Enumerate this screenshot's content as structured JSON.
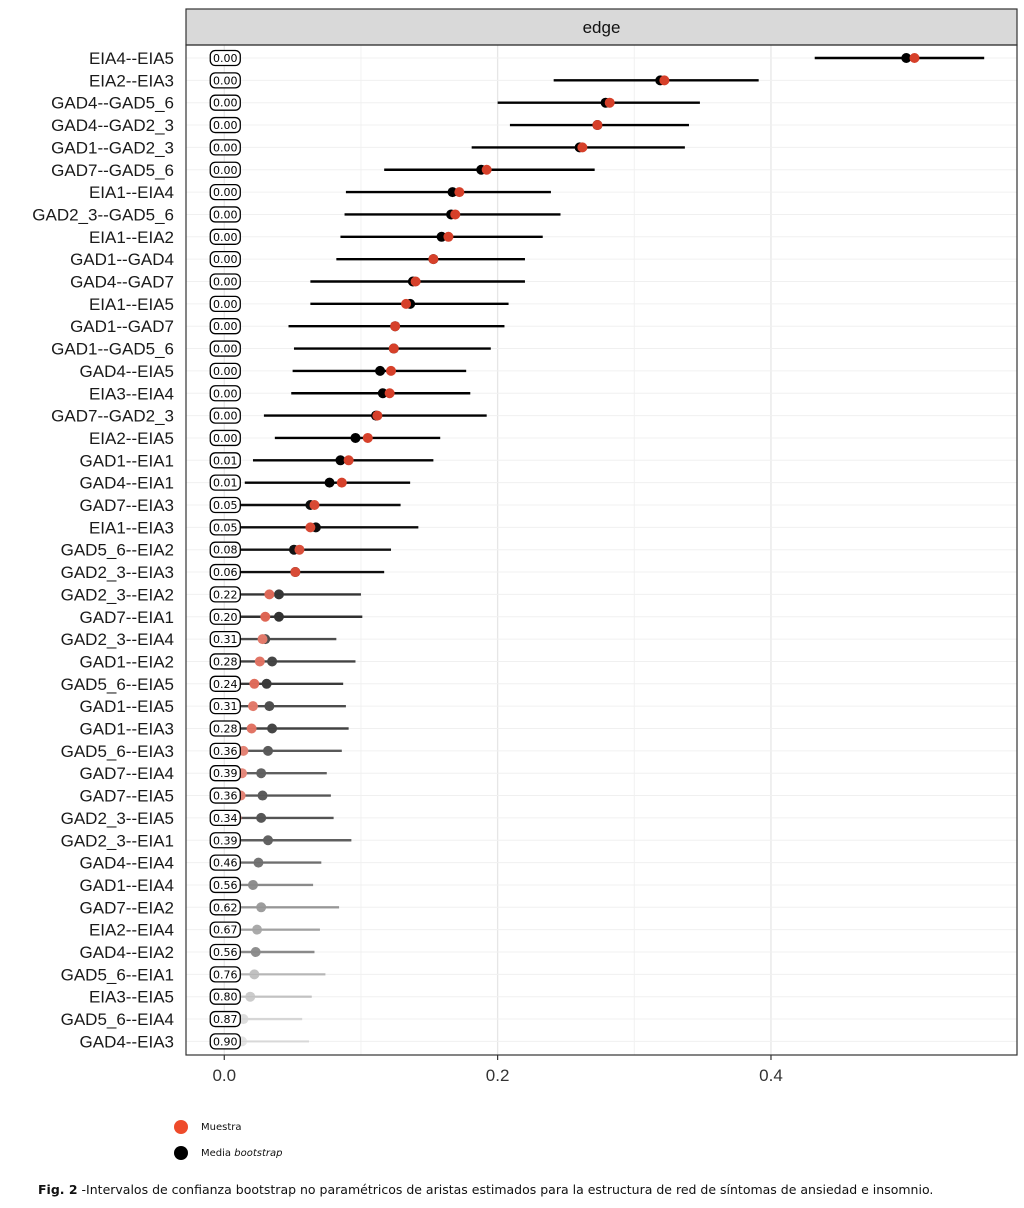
{
  "chart_data": {
    "type": "scatter",
    "panel_title": "edge",
    "xlim": [
      -0.028,
      0.58
    ],
    "x_ticks": [
      "0.0",
      "0.2",
      "0.4"
    ],
    "x_tick_values": [
      0,
      0.2,
      0.4
    ],
    "grid": true,
    "colors": {
      "sample": "#d6402a",
      "bootstrap": "#000000"
    },
    "legend": {
      "placement": "bottom-left",
      "items": [
        {
          "label": "Muestra",
          "color": "#ee4b2b"
        },
        {
          "label": "Media",
          "label_italic": "bootstrap",
          "color": "#000000"
        }
      ]
    },
    "edges": [
      {
        "label": "EIA4--EIA5",
        "prop": "0.00",
        "lower": 0.432,
        "upper": 0.556,
        "sample": 0.505,
        "boot": 0.499,
        "alpha": 1.0
      },
      {
        "label": "EIA2--EIA3",
        "prop": "0.00",
        "lower": 0.241,
        "upper": 0.391,
        "sample": 0.322,
        "boot": 0.319,
        "alpha": 1.0
      },
      {
        "label": "GAD4--GAD5_6",
        "prop": "0.00",
        "lower": 0.2,
        "upper": 0.348,
        "sample": 0.282,
        "boot": 0.279,
        "alpha": 1.0
      },
      {
        "label": "GAD4--GAD2_3",
        "prop": "0.00",
        "lower": 0.209,
        "upper": 0.34,
        "sample": 0.273,
        "boot": 0.273,
        "alpha": 1.0
      },
      {
        "label": "GAD1--GAD2_3",
        "prop": "0.00",
        "lower": 0.181,
        "upper": 0.337,
        "sample": 0.262,
        "boot": 0.26,
        "alpha": 1.0
      },
      {
        "label": "GAD7--GAD5_6",
        "prop": "0.00",
        "lower": 0.117,
        "upper": 0.271,
        "sample": 0.192,
        "boot": 0.188,
        "alpha": 1.0
      },
      {
        "label": "EIA1--EIA4",
        "prop": "0.00",
        "lower": 0.089,
        "upper": 0.239,
        "sample": 0.172,
        "boot": 0.167,
        "alpha": 1.0
      },
      {
        "label": "GAD2_3--GAD5_6",
        "prop": "0.00",
        "lower": 0.088,
        "upper": 0.246,
        "sample": 0.169,
        "boot": 0.166,
        "alpha": 1.0
      },
      {
        "label": "EIA1--EIA2",
        "prop": "0.00",
        "lower": 0.085,
        "upper": 0.233,
        "sample": 0.164,
        "boot": 0.159,
        "alpha": 1.0
      },
      {
        "label": "GAD1--GAD4",
        "prop": "0.00",
        "lower": 0.082,
        "upper": 0.22,
        "sample": 0.153,
        "boot": 0.153,
        "alpha": 1.0
      },
      {
        "label": "GAD4--GAD7",
        "prop": "0.00",
        "lower": 0.063,
        "upper": 0.22,
        "sample": 0.14,
        "boot": 0.138,
        "alpha": 1.0
      },
      {
        "label": "EIA1--EIA5",
        "prop": "0.00",
        "lower": 0.063,
        "upper": 0.208,
        "sample": 0.133,
        "boot": 0.136,
        "alpha": 1.0
      },
      {
        "label": "GAD1--GAD7",
        "prop": "0.00",
        "lower": 0.047,
        "upper": 0.205,
        "sample": 0.125,
        "boot": 0.125,
        "alpha": 1.0
      },
      {
        "label": "GAD1--GAD5_6",
        "prop": "0.00",
        "lower": 0.051,
        "upper": 0.195,
        "sample": 0.124,
        "boot": 0.124,
        "alpha": 1.0
      },
      {
        "label": "GAD4--EIA5",
        "prop": "0.00",
        "lower": 0.05,
        "upper": 0.177,
        "sample": 0.122,
        "boot": 0.114,
        "alpha": 1.0
      },
      {
        "label": "EIA3--EIA4",
        "prop": "0.00",
        "lower": 0.049,
        "upper": 0.18,
        "sample": 0.121,
        "boot": 0.116,
        "alpha": 1.0
      },
      {
        "label": "GAD7--GAD2_3",
        "prop": "0.00",
        "lower": 0.029,
        "upper": 0.192,
        "sample": 0.112,
        "boot": 0.111,
        "alpha": 1.0
      },
      {
        "label": "EIA2--EIA5",
        "prop": "0.00",
        "lower": 0.037,
        "upper": 0.158,
        "sample": 0.105,
        "boot": 0.096,
        "alpha": 1.0
      },
      {
        "label": "GAD1--EIA1",
        "prop": "0.01",
        "lower": 0.021,
        "upper": 0.153,
        "sample": 0.091,
        "boot": 0.085,
        "alpha": 0.99
      },
      {
        "label": "GAD4--EIA1",
        "prop": "0.01",
        "lower": 0.015,
        "upper": 0.136,
        "sample": 0.086,
        "boot": 0.077,
        "alpha": 0.99
      },
      {
        "label": "GAD7--EIA3",
        "prop": "0.05",
        "lower": 0.0,
        "upper": 0.129,
        "sample": 0.066,
        "boot": 0.063,
        "alpha": 0.95
      },
      {
        "label": "EIA1--EIA3",
        "prop": "0.05",
        "lower": 0.0,
        "upper": 0.142,
        "sample": 0.063,
        "boot": 0.067,
        "alpha": 0.95
      },
      {
        "label": "GAD5_6--EIA2",
        "prop": "0.08",
        "lower": 0.0,
        "upper": 0.122,
        "sample": 0.055,
        "boot": 0.051,
        "alpha": 0.92
      },
      {
        "label": "GAD2_3--EIA3",
        "prop": "0.06",
        "lower": 0.0,
        "upper": 0.117,
        "sample": 0.052,
        "boot": 0.052,
        "alpha": 0.94
      },
      {
        "label": "GAD2_3--EIA2",
        "prop": "0.22",
        "lower": 0.0,
        "upper": 0.1,
        "sample": 0.033,
        "boot": 0.04,
        "alpha": 0.78
      },
      {
        "label": "GAD7--EIA1",
        "prop": "0.20",
        "lower": 0.0,
        "upper": 0.101,
        "sample": 0.03,
        "boot": 0.04,
        "alpha": 0.8
      },
      {
        "label": "GAD2_3--EIA4",
        "prop": "0.31",
        "lower": 0.0,
        "upper": 0.082,
        "sample": 0.028,
        "boot": 0.03,
        "alpha": 0.69
      },
      {
        "label": "GAD1--EIA2",
        "prop": "0.28",
        "lower": 0.0,
        "upper": 0.096,
        "sample": 0.026,
        "boot": 0.035,
        "alpha": 0.72
      },
      {
        "label": "GAD5_6--EIA5",
        "prop": "0.24",
        "lower": 0.0,
        "upper": 0.087,
        "sample": 0.022,
        "boot": 0.031,
        "alpha": 0.76
      },
      {
        "label": "GAD1--EIA5",
        "prop": "0.31",
        "lower": 0.0,
        "upper": 0.089,
        "sample": 0.021,
        "boot": 0.033,
        "alpha": 0.69
      },
      {
        "label": "GAD1--EIA3",
        "prop": "0.28",
        "lower": 0.0,
        "upper": 0.091,
        "sample": 0.02,
        "boot": 0.035,
        "alpha": 0.72
      },
      {
        "label": "GAD5_6--EIA3",
        "prop": "0.36",
        "lower": 0.0,
        "upper": 0.086,
        "sample": 0.014,
        "boot": 0.032,
        "alpha": 0.64
      },
      {
        "label": "GAD7--EIA4",
        "prop": "0.39",
        "lower": 0.0,
        "upper": 0.075,
        "sample": 0.013,
        "boot": 0.027,
        "alpha": 0.61
      },
      {
        "label": "GAD7--EIA5",
        "prop": "0.36",
        "lower": 0.0,
        "upper": 0.078,
        "sample": 0.012,
        "boot": 0.028,
        "alpha": 0.64
      },
      {
        "label": "GAD2_3--EIA5",
        "prop": "0.34",
        "lower": 0.0,
        "upper": 0.08,
        "sample": 0.009,
        "boot": 0.027,
        "alpha": 0.66
      },
      {
        "label": "GAD2_3--EIA1",
        "prop": "0.39",
        "lower": 0.0,
        "upper": 0.093,
        "sample": 0.004,
        "boot": 0.032,
        "alpha": 0.61
      },
      {
        "label": "GAD4--EIA4",
        "prop": "0.46",
        "lower": 0.0,
        "upper": 0.071,
        "sample": 0.0,
        "boot": 0.025,
        "alpha": 0.54
      },
      {
        "label": "GAD1--EIA4",
        "prop": "0.56",
        "lower": 0.0,
        "upper": 0.065,
        "sample": 0.0,
        "boot": 0.021,
        "alpha": 0.44
      },
      {
        "label": "GAD7--EIA2",
        "prop": "0.62",
        "lower": 0.0,
        "upper": 0.084,
        "sample": 0.0,
        "boot": 0.027,
        "alpha": 0.38
      },
      {
        "label": "EIA2--EIA4",
        "prop": "0.67",
        "lower": 0.0,
        "upper": 0.07,
        "sample": 0.0,
        "boot": 0.024,
        "alpha": 0.33
      },
      {
        "label": "GAD4--EIA2",
        "prop": "0.56",
        "lower": 0.0,
        "upper": 0.066,
        "sample": 0.0,
        "boot": 0.023,
        "alpha": 0.44
      },
      {
        "label": "GAD5_6--EIA1",
        "prop": "0.76",
        "lower": 0.0,
        "upper": 0.074,
        "sample": 0.0,
        "boot": 0.022,
        "alpha": 0.24
      },
      {
        "label": "EIA3--EIA5",
        "prop": "0.80",
        "lower": 0.0,
        "upper": 0.064,
        "sample": 0.0,
        "boot": 0.019,
        "alpha": 0.2
      },
      {
        "label": "GAD5_6--EIA4",
        "prop": "0.87",
        "lower": 0.0,
        "upper": 0.057,
        "sample": 0.0,
        "boot": 0.014,
        "alpha": 0.13
      },
      {
        "label": "GAD4--EIA3",
        "prop": "0.90",
        "lower": 0.0,
        "upper": 0.062,
        "sample": 0.0,
        "boot": 0.013,
        "alpha": 0.1
      }
    ]
  },
  "caption": {
    "label": "Fig. 2",
    "text": " -Intervalos de confianza bootstrap no paramétricos de aristas estimados para la estructura de red de síntomas de ansiedad e insomnio."
  }
}
